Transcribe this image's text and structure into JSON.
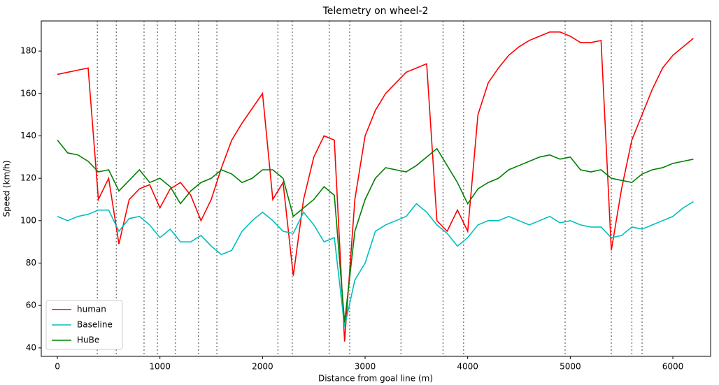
{
  "chart_data": {
    "type": "line",
    "title": "Telemetry on wheel-2",
    "x_label": "Distance from goal line (m)",
    "y_label": "Speed (km/h)",
    "xlim": [
      -157,
      6368
    ],
    "ylim": [
      36,
      194.2
    ],
    "xticks": [
      0,
      1000,
      2000,
      3000,
      4000,
      5000,
      6000
    ],
    "yticks": [
      40,
      60,
      80,
      100,
      120,
      140,
      160,
      180
    ],
    "legend": "lower left",
    "vlines": [
      390,
      575,
      845,
      975,
      1150,
      1375,
      1555,
      2150,
      2290,
      2650,
      2850,
      3350,
      3760,
      3960,
      4950,
      5400,
      5600,
      5700
    ],
    "vline_color": "#808080",
    "x": [
      0,
      100,
      200,
      300,
      400,
      500,
      600,
      700,
      800,
      900,
      1000,
      1100,
      1200,
      1300,
      1400,
      1500,
      1600,
      1700,
      1800,
      1900,
      2000,
      2100,
      2200,
      2300,
      2400,
      2500,
      2600,
      2700,
      2800,
      2900,
      3000,
      3100,
      3200,
      3300,
      3400,
      3500,
      3600,
      3700,
      3800,
      3900,
      4000,
      4100,
      4200,
      4300,
      4400,
      4500,
      4600,
      4700,
      4800,
      4900,
      5000,
      5100,
      5200,
      5300,
      5400,
      5500,
      5600,
      5700,
      5800,
      5900,
      6000,
      6100,
      6200
    ],
    "series": [
      {
        "name": "human",
        "color": "#ff0000",
        "values": [
          169,
          170,
          171,
          172,
          110,
          120,
          89,
          110,
          115,
          117,
          106,
          115,
          118,
          112,
          100,
          110,
          125,
          138,
          146,
          153,
          160,
          110,
          118,
          74,
          110,
          130,
          140,
          138,
          43,
          110,
          140,
          152,
          160,
          165,
          170,
          172,
          174,
          100,
          95,
          105,
          95,
          150,
          165,
          172,
          178,
          182,
          185,
          187,
          189,
          189,
          187,
          184,
          184,
          185,
          86,
          115,
          138,
          150,
          162,
          172,
          178,
          182,
          186
        ]
      },
      {
        "name": "Baseline",
        "color": "#00bfbf",
        "values": [
          102,
          100,
          102,
          103,
          105,
          105,
          95,
          101,
          102,
          98,
          92,
          96,
          90,
          90,
          93,
          88,
          84,
          86,
          95,
          100,
          104,
          100,
          95,
          94,
          104,
          98,
          90,
          92,
          50,
          72,
          80,
          95,
          98,
          100,
          102,
          108,
          104,
          98,
          94,
          88,
          92,
          98,
          100,
          100,
          102,
          100,
          98,
          100,
          102,
          99,
          100,
          98,
          97,
          97,
          92,
          93,
          97,
          96,
          98,
          100,
          102,
          106,
          109
        ]
      },
      {
        "name": "HuBe",
        "color": "#008000",
        "values": [
          138,
          132,
          131,
          128,
          123,
          124,
          114,
          119,
          124,
          118,
          120,
          116,
          108,
          114,
          118,
          120,
          124,
          122,
          118,
          120,
          124,
          124,
          120,
          102,
          106,
          110,
          116,
          112,
          52,
          95,
          110,
          120,
          125,
          124,
          123,
          126,
          130,
          134,
          126,
          118,
          108,
          115,
          118,
          120,
          124,
          126,
          128,
          130,
          131,
          129,
          130,
          124,
          123,
          124,
          120,
          119,
          118,
          122,
          124,
          125,
          127,
          128,
          129
        ]
      }
    ]
  }
}
